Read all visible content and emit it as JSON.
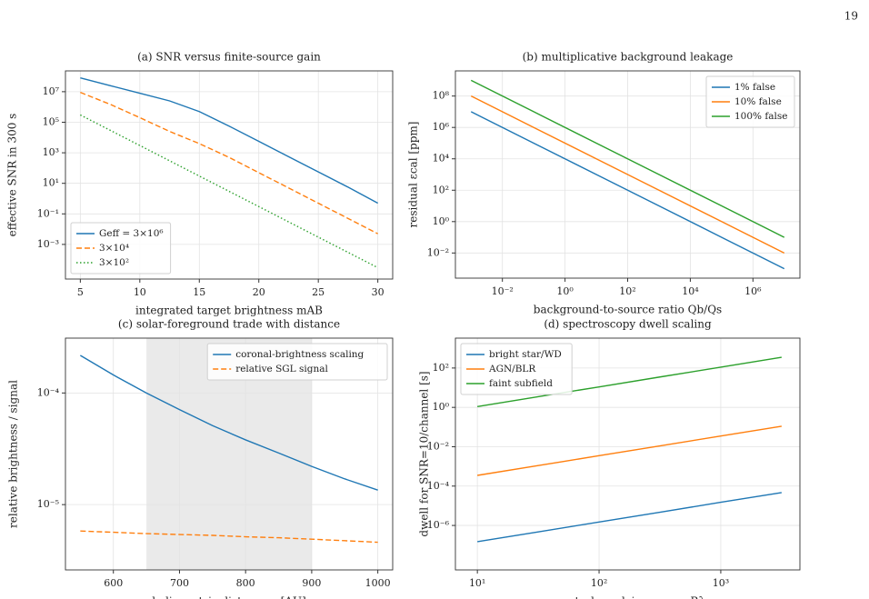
{
  "page_number": "19",
  "chart_data": [
    {
      "type": "line",
      "title": "(a) SNR versus finite-source gain",
      "x_label": "integrated target brightness mAB",
      "y_label": "effective SNR in 300 s",
      "xscale": "linear",
      "yscale": "log",
      "grid": true,
      "legend": "lower left",
      "xlim": [
        3.75,
        31.25
      ],
      "ylim": [
        5.4e-06,
        230000000.0
      ],
      "xticks": [
        5,
        10,
        15,
        20,
        25,
        30
      ],
      "yticks": [
        {
          "value": 0.001,
          "label": "10⁻³"
        },
        {
          "value": 0.1,
          "label": "10⁻¹"
        },
        {
          "value": 10,
          "label": "10¹"
        },
        {
          "value": 1000,
          "label": "10³"
        },
        {
          "value": 100000,
          "label": "10⁵"
        },
        {
          "value": 10000000,
          "label": "10⁷"
        }
      ],
      "x": [
        5,
        7.5,
        10,
        12.5,
        15,
        17.5,
        20,
        22.5,
        25,
        27.5,
        30
      ],
      "series": [
        {
          "name": "Geff = 3×10⁶",
          "color": "#1f77b4",
          "linestyle": "solid",
          "values": [
            80000000.0,
            25000000.0,
            8000000.0,
            2500000.0,
            500000.0,
            56000.0,
            5600.0,
            560,
            56,
            5.6,
            0.5
          ]
        },
        {
          "name": "3×10⁴",
          "color": "#ff7f0e",
          "linestyle": "dashed",
          "values": [
            9000000.0,
            1500000.0,
            200000.0,
            25000.0,
            4000.0,
            500,
            50,
            5,
            0.5,
            0.05,
            0.005
          ]
        },
        {
          "name": "3×10²",
          "color": "#2ca02c",
          "linestyle": "dotted",
          "values": [
            300000.0,
            30000.0,
            3000.0,
            300,
            30,
            3,
            0.3,
            0.03,
            0.003,
            0.0003,
            3e-05
          ]
        }
      ]
    },
    {
      "type": "line",
      "title": "(b) multiplicative background leakage",
      "x_label": "background-to-source ratio Qb/Qs",
      "y_label": "residual εcal [ppm]",
      "xscale": "log",
      "yscale": "log",
      "grid": true,
      "legend": "upper right",
      "xlim": [
        0.000316,
        31600000.0
      ],
      "ylim": [
        0.00025,
        4000000000.0
      ],
      "xticks": [
        {
          "value": 0.01,
          "label": "10⁻²"
        },
        {
          "value": 1,
          "label": "10⁰"
        },
        {
          "value": 100,
          "label": "10²"
        },
        {
          "value": 10000,
          "label": "10⁴"
        },
        {
          "value": 1000000,
          "label": "10⁶"
        }
      ],
      "yticks": [
        {
          "value": 0.01,
          "label": "10⁻²"
        },
        {
          "value": 1,
          "label": "10⁰"
        },
        {
          "value": 100,
          "label": "10²"
        },
        {
          "value": 10000,
          "label": "10⁴"
        },
        {
          "value": 1000000,
          "label": "10⁶"
        },
        {
          "value": 100000000,
          "label": "10⁸"
        }
      ],
      "x": [
        0.001,
        0.1,
        10,
        1000,
        100000,
        10000000
      ],
      "series": [
        {
          "name": "1% false",
          "color": "#1f77b4",
          "linestyle": "solid",
          "values": [
            10000000.0,
            100000.0,
            1000,
            10,
            0.1,
            0.001
          ]
        },
        {
          "name": "10% false",
          "color": "#ff7f0e",
          "linestyle": "solid",
          "values": [
            100000000.0,
            1000000.0,
            10000,
            100,
            1,
            0.01
          ]
        },
        {
          "name": "100% false",
          "color": "#2ca02c",
          "linestyle": "solid",
          "values": [
            1000000000.0,
            10000000.0,
            100000,
            1000,
            10,
            0.1
          ]
        }
      ]
    },
    {
      "type": "line",
      "title": "(c) solar-foreground trade with distance",
      "x_label": "heliocentric distance z [AU]",
      "y_label": "relative brightness / signal",
      "xscale": "linear",
      "yscale": "log",
      "grid": true,
      "legend": "upper right",
      "highlight": [
        650,
        900
      ],
      "xlim": [
        527.5,
        1022.5
      ],
      "ylim": [
        2.6e-06,
        0.00031
      ],
      "xticks": [
        600,
        700,
        800,
        900,
        1000
      ],
      "yticks": [
        {
          "value": 1e-05,
          "label": "10⁻⁵"
        },
        {
          "value": 0.0001,
          "label": "10⁻⁴"
        }
      ],
      "x": [
        550,
        600,
        650,
        700,
        750,
        800,
        850,
        900,
        950,
        1000
      ],
      "series": [
        {
          "name": "coronal-brightness scaling",
          "color": "#1f77b4",
          "linestyle": "solid",
          "values": [
            0.000217,
            0.000145,
            0.0001,
            7.1e-05,
            5.1e-05,
            3.8e-05,
            2.9e-05,
            2.2e-05,
            1.7e-05,
            1.35e-05
          ]
        },
        {
          "name": "relative SGL signal",
          "color": "#ff7f0e",
          "linestyle": "dashed",
          "values": [
            5.8e-06,
            5.65e-06,
            5.5e-06,
            5.4e-06,
            5.3e-06,
            5.15e-06,
            5.05e-06,
            4.9e-06,
            4.75e-06,
            4.6e-06
          ]
        }
      ]
    },
    {
      "type": "line",
      "title": "(d) spectroscopy dwell scaling",
      "x_label": "spectral resolving power Rλ",
      "y_label": "dwell for SNR=10/channel [s]",
      "xscale": "log",
      "yscale": "log",
      "grid": true,
      "legend": "upper left",
      "xlim": [
        6.6,
        4470
      ],
      "ylim": [
        5.5e-09,
        3300
      ],
      "xticks": [
        {
          "value": 10,
          "label": "10¹"
        },
        {
          "value": 100,
          "label": "10²"
        },
        {
          "value": 1000,
          "label": "10³"
        }
      ],
      "yticks": [
        {
          "value": 1e-06,
          "label": "10⁻⁶"
        },
        {
          "value": 0.0001,
          "label": "10⁻⁴"
        },
        {
          "value": 0.01,
          "label": "10⁻²"
        },
        {
          "value": 1,
          "label": "10⁰"
        },
        {
          "value": 100,
          "label": "10²"
        }
      ],
      "x": [
        10,
        31.6,
        100,
        316,
        1000,
        3162
      ],
      "series": [
        {
          "name": "bright star/WD",
          "color": "#1f77b4",
          "linestyle": "solid",
          "values": [
            1.5e-07,
            4.7e-07,
            1.5e-06,
            4.7e-06,
            1.5e-05,
            4.7e-05
          ]
        },
        {
          "name": "AGN/BLR",
          "color": "#ff7f0e",
          "linestyle": "solid",
          "values": [
            0.00035,
            0.0011,
            0.0035,
            0.011,
            0.035,
            0.11
          ]
        },
        {
          "name": "faint subfield",
          "color": "#2ca02c",
          "linestyle": "solid",
          "values": [
            1.1,
            3.5,
            11,
            35,
            110,
            350
          ]
        }
      ]
    }
  ]
}
